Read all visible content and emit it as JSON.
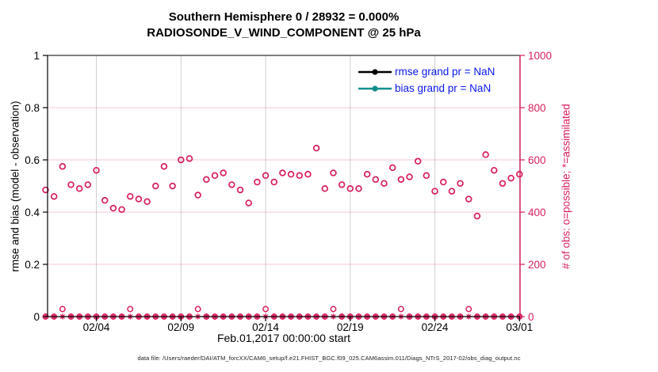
{
  "colors": {
    "obs_pink": "#d81e5a",
    "rmse_black": "#000000",
    "bias_teal": "#0f8f8c",
    "legend_text_blue": "#0a18ee",
    "grid_vertical": "#cfcfcf",
    "grid_horizontal": "rgba(216,30,90,0.25)",
    "axis_black": "#000000",
    "background": "#ffffff"
  },
  "header": {
    "title_line1": "Southern Hemisphere 0 / 28932 = 0.000%",
    "title_line2": "RADIOSONDE_V_WIND_COMPONENT @ 25 hPa"
  },
  "axes": {
    "xlabel": "Feb.01,2017 00:00:00 start",
    "ylabel_left": "rmse and bias (model - observation)",
    "ylabel_right": "# of obs: o=possible; *=assimilated"
  },
  "legend": {
    "entries": [
      {
        "label": "rmse grand pr = NaN",
        "color": "#000000"
      },
      {
        "label": "bias grand pr = NaN",
        "color": "#0f8f8c"
      }
    ]
  },
  "footer": {
    "datafile": "data file: /Users/raeder/DAI/ATM_forcXX/CAM6_setup/f.e21.FHIST_BGC.f09_025.CAM6assim.011/Diags_NTrS_2017-02/obs_diag_output.nc"
  },
  "chart_data": {
    "type": "scatter",
    "title": "Southern Hemisphere 0 / 28932 = 0.000%",
    "subtitle": "RADIOSONDE_V_WIND_COMPONENT @ 25 hPa",
    "xlabel": "Feb.01,2017 00:00:00 start",
    "x_unit": "days since Feb.01,2017 00:00:00",
    "x_range_days": [
      0,
      28
    ],
    "x_tick_days": [
      3,
      8,
      13,
      18,
      23,
      28
    ],
    "x_tick_labels": [
      "02/04",
      "02/09",
      "02/14",
      "02/19",
      "02/24",
      "03/01"
    ],
    "left_axis": {
      "label": "rmse and bias (model - observation)",
      "ticks": [
        0,
        0.2,
        0.4,
        0.6,
        0.8,
        1
      ],
      "range": [
        0,
        1
      ]
    },
    "right_axis": {
      "label": "# of obs: o=possible; *=assimilated",
      "ticks": [
        0,
        200,
        400,
        600,
        800,
        1000
      ],
      "range": [
        0,
        1000
      ]
    },
    "grid": true,
    "legend_position": "upper-right-inside",
    "series": [
      {
        "name": "rmse",
        "legend": "rmse grand pr = NaN",
        "color": "#000000",
        "marker": "line-dot",
        "values": "NaN (not plotted)"
      },
      {
        "name": "bias",
        "legend": "bias grand pr = NaN",
        "color": "#0f8f8c",
        "marker": "line-dot",
        "values": "NaN (not plotted)"
      },
      {
        "name": "possible_obs",
        "marker": "o",
        "axis": "right",
        "color": "#d81e5a",
        "start_day": 0,
        "time_step_days": 0.5,
        "values": [
          485,
          460,
          575,
          505,
          490,
          505,
          560,
          445,
          415,
          410,
          460,
          450,
          440,
          500,
          575,
          500,
          600,
          605,
          465,
          525,
          540,
          550,
          505,
          485,
          435,
          515,
          540,
          515,
          550,
          545,
          540,
          545,
          645,
          490,
          550,
          505,
          490,
          490,
          545,
          525,
          510,
          570,
          525,
          535,
          595,
          540,
          480,
          515,
          480,
          510,
          450,
          385,
          620,
          560,
          510,
          530,
          545
        ]
      },
      {
        "name": "assimilated_obs",
        "marker": "*",
        "axis": "right",
        "color": "#d81e5a",
        "start_day": 0,
        "time_step_days": 0.5,
        "constant_value": 0,
        "count": 57
      }
    ]
  }
}
